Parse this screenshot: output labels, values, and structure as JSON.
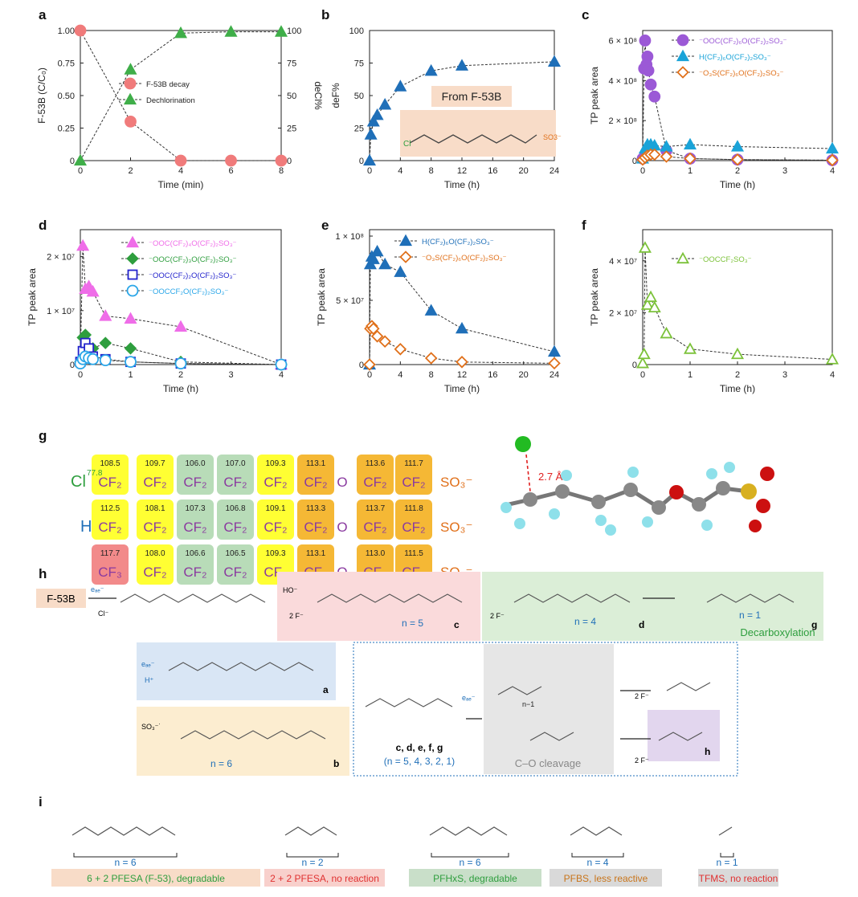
{
  "colors": {
    "decay": "#f07b7b",
    "dechlor": "#3fae49",
    "blue": "#1f6fb8",
    "purple": "#9b59d6",
    "cyan": "#1aa3d8",
    "orange": "#e0701a",
    "magenta": "#ef6de8",
    "green": "#2e9e3e",
    "navy": "#2222cc",
    "lightblue": "#2aa6e8",
    "lime": "#7cc23a"
  },
  "panels": {
    "a": "a",
    "b": "b",
    "c": "c",
    "d": "d",
    "e": "e",
    "f": "f",
    "g": "g",
    "h": "h",
    "i": "i"
  },
  "chart_data": [
    {
      "id": "a",
      "type": "line",
      "xlabel": "Time (min)",
      "ylabel": "F-53B (C/C₀)",
      "y2label": "deCl%",
      "xlim": [
        0,
        8
      ],
      "ylim": [
        0,
        1
      ],
      "y2lim": [
        0,
        100
      ],
      "xticks": [
        "0",
        "2",
        "4",
        "6",
        "8"
      ],
      "yticks": [
        "0",
        "0.25",
        "0.50",
        "0.75",
        "1.00"
      ],
      "y2ticks": [
        "0",
        "25",
        "50",
        "75",
        "100"
      ],
      "series": [
        {
          "name": "F-53B decay",
          "axis": "left",
          "marker": "circle",
          "x": [
            0,
            2,
            4,
            6,
            8
          ],
          "values": [
            1.0,
            0.3,
            0.0,
            0.0,
            0.0
          ]
        },
        {
          "name": "Dechlorination",
          "axis": "right",
          "marker": "triangle",
          "x": [
            0,
            2,
            4,
            6,
            8
          ],
          "values": [
            0,
            70,
            98,
            99,
            99
          ]
        }
      ]
    },
    {
      "id": "b",
      "type": "line",
      "xlabel": "Time (h)",
      "ylabel": "deF%",
      "xlim": [
        0,
        24
      ],
      "ylim": [
        0,
        100
      ],
      "xticks": [
        "0",
        "4",
        "8",
        "12",
        "16",
        "20",
        "24"
      ],
      "yticks": [
        "0",
        "25",
        "50",
        "75",
        "100"
      ],
      "annotation": "From F-53B",
      "series": [
        {
          "name": "deF%",
          "marker": "triangle",
          "x": [
            0,
            0.17,
            0.5,
            1,
            2,
            4,
            8,
            12,
            24
          ],
          "values": [
            0,
            20,
            30,
            35,
            43,
            57,
            69,
            73,
            76
          ]
        }
      ]
    },
    {
      "id": "c",
      "type": "line",
      "xlabel": "Time (h)",
      "ylabel": "TP peak area",
      "xlim": [
        0,
        4
      ],
      "ylim": [
        0,
        650000000.0
      ],
      "xticks": [
        "0",
        "1",
        "2",
        "3",
        "4"
      ],
      "yticks": [
        "0",
        "2 × 10⁸",
        "4 × 10⁸",
        "6 × 10⁸"
      ],
      "series": [
        {
          "name": "⁻OOC(CF₂)₆O(CF₂)₂SO₃⁻",
          "marker": "circle",
          "x": [
            0,
            0.03,
            0.05,
            0.08,
            0.1,
            0.12,
            0.17,
            0.25,
            0.5,
            1,
            2,
            4
          ],
          "values": [
            10000000.0,
            460000000.0,
            600000000.0,
            480000000.0,
            520000000.0,
            450000000.0,
            380000000.0,
            320000000.0,
            50000000.0,
            10000000.0,
            5000000.0,
            2000000.0
          ]
        },
        {
          "name": "H(CF₂)₆O(CF₂)₂SO₃⁻",
          "marker": "triangle",
          "x": [
            0,
            0.05,
            0.1,
            0.17,
            0.25,
            0.5,
            1,
            2,
            4
          ],
          "values": [
            10000000.0,
            60000000.0,
            80000000.0,
            80000000.0,
            75000000.0,
            70000000.0,
            80000000.0,
            70000000.0,
            60000000.0
          ]
        },
        {
          "name": "⁻O₃S(CF₂)₆O(CF₂)₂SO₃⁻",
          "marker": "diamond",
          "x": [
            0,
            0.05,
            0.1,
            0.17,
            0.25,
            0.5,
            1,
            2,
            4
          ],
          "values": [
            5000000.0,
            15000000.0,
            25000000.0,
            30000000.0,
            30000000.0,
            20000000.0,
            10000000.0,
            5000000.0,
            2000000.0
          ]
        }
      ]
    },
    {
      "id": "d",
      "type": "line",
      "xlabel": "Time (h)",
      "ylabel": "TP peak area",
      "xlim": [
        0,
        4
      ],
      "ylim": [
        0,
        25000000.0
      ],
      "xticks": [
        "0",
        "1",
        "2",
        "3",
        "4"
      ],
      "yticks": [
        "0",
        "1 × 10⁷",
        "2 × 10⁷"
      ],
      "series": [
        {
          "name": "⁻OOC(CF₂)₄O(CF₂)₂SO₃⁻",
          "marker": "triangle",
          "x": [
            0,
            0.05,
            0.1,
            0.17,
            0.25,
            0.5,
            1,
            2,
            4
          ],
          "values": [
            1000000.0,
            22000000.0,
            14000000.0,
            14500000.0,
            13500000.0,
            9000000.0,
            8500000.0,
            7000000.0,
            0.0
          ]
        },
        {
          "name": "⁻OOC(CF₂)₃O(CF₂)₂SO₃⁻",
          "marker": "diamond",
          "x": [
            0,
            0.05,
            0.1,
            0.25,
            0.5,
            1,
            2,
            4
          ],
          "values": [
            500000.0,
            5000000.0,
            5500000.0,
            3000000.0,
            4000000.0,
            3000000.0,
            500000.0,
            0.0
          ]
        },
        {
          "name": "⁻OOC(CF₂)₂O(CF₂)₂SO₃⁻",
          "marker": "square",
          "x": [
            0,
            0.05,
            0.1,
            0.17,
            0.25,
            0.5,
            1,
            2,
            4
          ],
          "values": [
            500000.0,
            2500000.0,
            4000000.0,
            3000000.0,
            1500000.0,
            1000000.0,
            500000.0,
            200000.0,
            0.0
          ]
        },
        {
          "name": "⁻OOCCF₂O(CF₂)₂SO₃⁻",
          "marker": "circle",
          "x": [
            0,
            0.05,
            0.1,
            0.17,
            0.25,
            0.5,
            1,
            2,
            4
          ],
          "values": [
            200000.0,
            1000000.0,
            1500000.0,
            1200000.0,
            1000000.0,
            800000.0,
            500000.0,
            200000.0,
            0.0
          ]
        }
      ]
    },
    {
      "id": "e",
      "type": "line",
      "xlabel": "Time (h)",
      "ylabel": "TP peak area",
      "xlim": [
        0,
        24
      ],
      "ylim": [
        0,
        105000000.0
      ],
      "xticks": [
        "0",
        "4",
        "8",
        "12",
        "16",
        "20",
        "24"
      ],
      "yticks": [
        "0",
        "5 × 10⁷",
        "1 × 10⁸"
      ],
      "series": [
        {
          "name": "H(CF₂)₆O(CF₂)₂SO₃⁻",
          "marker": "triangle",
          "x": [
            0,
            0.1,
            0.3,
            0.5,
            1,
            2,
            4,
            8,
            12,
            24
          ],
          "values": [
            0,
            78000000.0,
            84000000.0,
            82000000.0,
            88000000.0,
            78000000.0,
            72000000.0,
            42000000.0,
            28000000.0,
            10000000.0
          ]
        },
        {
          "name": "⁻O₃S(CF₂)₆O(CF₂)₂SO₃⁻",
          "marker": "diamond",
          "x": [
            0,
            0.1,
            0.3,
            0.5,
            1,
            2,
            4,
            8,
            12,
            24
          ],
          "values": [
            0,
            28000000.0,
            30000000.0,
            28000000.0,
            22000000.0,
            18000000.0,
            12000000.0,
            5000000.0,
            2000000.0,
            1000000.0
          ]
        }
      ]
    },
    {
      "id": "f",
      "type": "line",
      "xlabel": "Time (h)",
      "ylabel": "TP peak area",
      "xlim": [
        0,
        4
      ],
      "ylim": [
        0,
        52000000.0
      ],
      "xticks": [
        "0",
        "1",
        "2",
        "3",
        "4"
      ],
      "yticks": [
        "0",
        "2 × 10⁷",
        "4 × 10⁷"
      ],
      "series": [
        {
          "name": "⁻OOCCF₂SO₃⁻",
          "marker": "triangle-open",
          "x": [
            0,
            0.03,
            0.05,
            0.1,
            0.17,
            0.25,
            0.5,
            1,
            2,
            4
          ],
          "values": [
            500000.0,
            4000000.0,
            45000000.0,
            23000000.0,
            26000000.0,
            22000000.0,
            12000000.0,
            6000000.0,
            4000000.0,
            2000000.0
          ]
        }
      ]
    }
  ],
  "nmr": {
    "rows": [
      {
        "head": "Cl",
        "head_color": "#2e9e3e",
        "first": "CF₂",
        "shifts": [
          "108.5",
          "109.7",
          "106.0",
          "107.0",
          "109.3",
          "113.1",
          "113.6",
          "111.7"
        ],
        "cl_shift": "77.8"
      },
      {
        "head": "H",
        "head_color": "#1f6fb8",
        "first": "CF₂",
        "shifts": [
          "112.5",
          "108.1",
          "107.3",
          "106.8",
          "109.1",
          "113.3",
          "113.7",
          "111.8"
        ]
      },
      {
        "head": "",
        "head_color": "#222",
        "first": "CF₃",
        "shifts": [
          "117.7",
          "108.0",
          "106.6",
          "106.5",
          "109.3",
          "113.1",
          "113.0",
          "111.5"
        ]
      }
    ],
    "cf2": "CF₂",
    "o": "O",
    "so3": "SO₃⁻",
    "distance": "2.7 Å"
  },
  "scheme": {
    "f53b": "F-53B",
    "eaq": "eₐₑ⁻",
    "cl": "Cl⁻",
    "ho": "HO⁻",
    "two_f": "2 F⁻",
    "h_plus": "H⁺",
    "so3": "SO₃⁻˙",
    "n5": "n = 5",
    "n4": "n = 4",
    "n1": "n = 1",
    "n6": "n = 6",
    "label_a": "a",
    "label_b": "b",
    "label_c": "c",
    "label_d": "d",
    "label_g": "g",
    "label_h": "h",
    "decarboxylation": "Decarboxylation",
    "co_cleavage": "C–O cleavage",
    "generic_label": "c, d, e, f, g",
    "generic_n": "(n = 5, 4, 3, 2, 1)",
    "nminus1": "n−1"
  },
  "panel_i": [
    {
      "n": "n = 6",
      "caption": "6 + 2 PFESA (F-53), degradable",
      "bg": "#f8dcc8"
    },
    {
      "n": "n = 2",
      "caption": "2 + 2 PFESA, no reaction",
      "bg": "#f8d0cc"
    },
    {
      "n": "n = 6",
      "caption": "PFHxS, degradable",
      "bg": "#c9dfc9"
    },
    {
      "n": "n = 4",
      "caption": "PFBS, less reactive",
      "bg": "#d9d9d9"
    },
    {
      "n": "n = 1",
      "caption": "TFMS, no reaction",
      "bg": "#d9d9d9"
    }
  ]
}
